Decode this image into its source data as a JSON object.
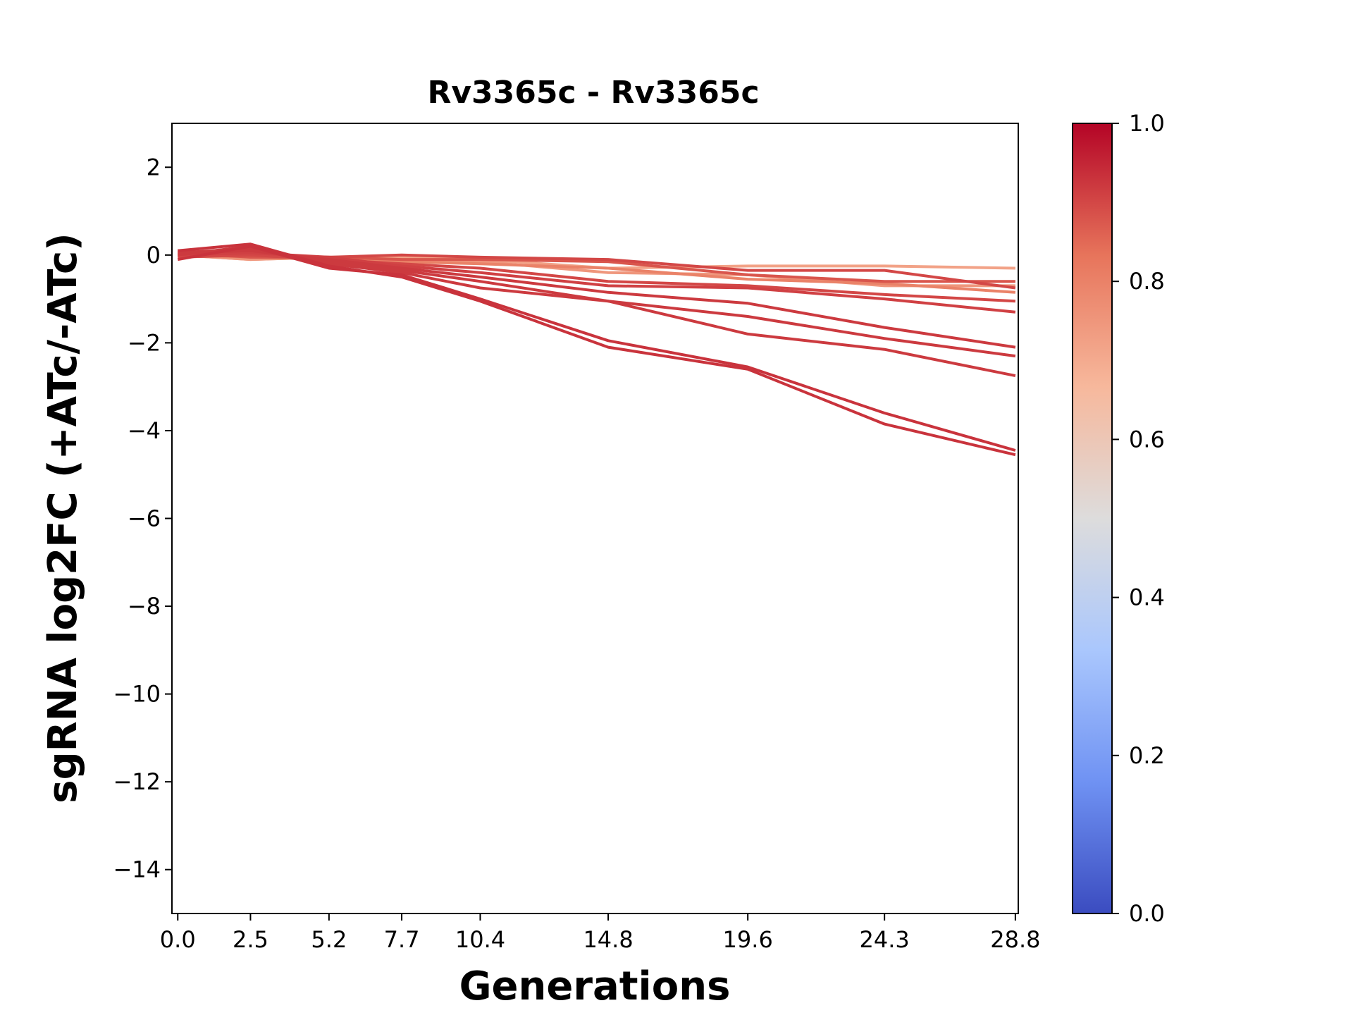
{
  "chart_data": {
    "type": "line",
    "title": "Rv3365c - Rv3365c",
    "xlabel": "Generations",
    "ylabel": "sgRNA log2FC (+ATc/-ATc)",
    "x": [
      0.0,
      2.5,
      5.2,
      7.7,
      10.4,
      14.8,
      19.6,
      24.3,
      28.8
    ],
    "x_tick_labels": [
      "0.0",
      "2.5",
      "5.2",
      "7.7",
      "10.4",
      "14.8",
      "19.6",
      "24.3",
      "28.8"
    ],
    "xlim": [
      -0.2,
      28.9
    ],
    "ylim": [
      -15,
      3
    ],
    "y_ticks": [
      2,
      0,
      -2,
      -4,
      -6,
      -8,
      -10,
      -12,
      -14
    ],
    "y_tick_labels": [
      "2",
      "0",
      "−2",
      "−4",
      "−6",
      "−8",
      "−10",
      "−12",
      "−14"
    ],
    "grid": false,
    "colorbar": {
      "colormap": "coolwarm",
      "min": 0.0,
      "max": 1.0,
      "ticks": [
        0.0,
        0.2,
        0.4,
        0.6,
        0.8,
        1.0
      ],
      "tick_labels": [
        "0.0",
        "0.2",
        "0.4",
        "0.6",
        "0.8",
        "1.0"
      ],
      "stops": [
        "#3b4cc0",
        "#6f92f3",
        "#aac7fd",
        "#dddcdc",
        "#f7b89c",
        "#e7745b",
        "#b40426"
      ]
    },
    "series": [
      {
        "values": [
          -0.1,
          0.2,
          -0.3,
          -0.45,
          -1.0,
          -1.95,
          -2.55,
          -3.6,
          -4.45
        ],
        "color_value": 0.93
      },
      {
        "values": [
          0.1,
          0.25,
          -0.25,
          -0.5,
          -1.05,
          -2.1,
          -2.6,
          -3.85,
          -4.55
        ],
        "color_value": 0.93
      },
      {
        "values": [
          0.0,
          0.2,
          -0.2,
          -0.4,
          -0.75,
          -1.05,
          -1.8,
          -2.15,
          -2.75
        ],
        "color_value": 0.92
      },
      {
        "values": [
          0.05,
          0.15,
          -0.15,
          -0.35,
          -0.6,
          -1.05,
          -1.4,
          -1.9,
          -2.3
        ],
        "color_value": 0.92
      },
      {
        "values": [
          0.05,
          0.1,
          -0.1,
          -0.3,
          -0.5,
          -0.85,
          -1.1,
          -1.65,
          -2.1
        ],
        "color_value": 0.92
      },
      {
        "values": [
          0.0,
          0.05,
          -0.05,
          -0.25,
          -0.4,
          -0.7,
          -0.75,
          -1.0,
          -1.3
        ],
        "color_value": 0.91
      },
      {
        "values": [
          -0.05,
          0.0,
          -0.1,
          -0.2,
          -0.3,
          -0.6,
          -0.7,
          -0.9,
          -1.05
        ],
        "color_value": 0.9
      },
      {
        "values": [
          0.1,
          0.0,
          -0.05,
          0.0,
          -0.05,
          -0.1,
          -0.35,
          -0.35,
          -0.75
        ],
        "color_value": 0.9
      },
      {
        "values": [
          0.05,
          -0.05,
          -0.05,
          -0.1,
          -0.1,
          -0.15,
          -0.45,
          -0.6,
          -0.6
        ],
        "color_value": 0.88
      },
      {
        "values": [
          0.0,
          -0.05,
          -0.1,
          -0.15,
          -0.2,
          -0.3,
          -0.55,
          -0.65,
          -0.85
        ],
        "color_value": 0.8
      },
      {
        "values": [
          0.0,
          -0.1,
          -0.05,
          -0.1,
          -0.15,
          -0.4,
          -0.45,
          -0.7,
          -0.7
        ],
        "color_value": 0.75
      },
      {
        "values": [
          0.0,
          -0.1,
          -0.05,
          -0.05,
          -0.1,
          -0.3,
          -0.25,
          -0.25,
          -0.3
        ],
        "color_value": 0.72
      }
    ]
  }
}
